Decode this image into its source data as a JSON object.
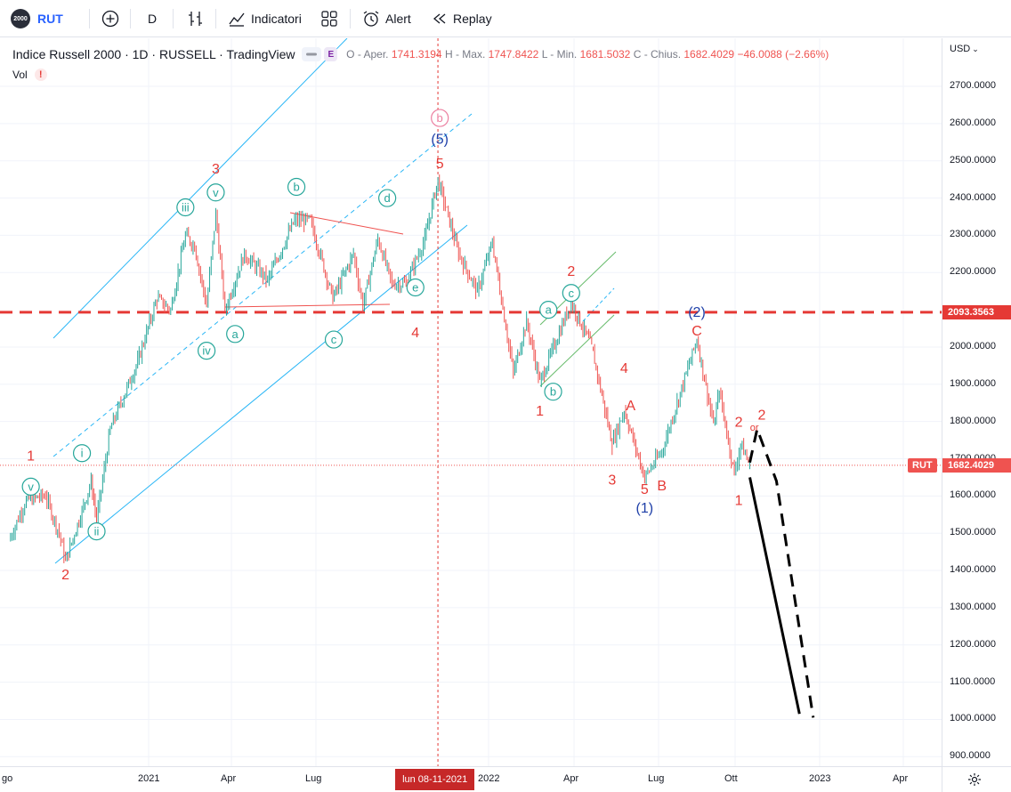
{
  "toolbar": {
    "logo_text": "2000",
    "symbol": "RUT",
    "interval": "D",
    "indicators_label": "Indicatori",
    "alert_label": "Alert",
    "replay_label": "Replay"
  },
  "legend": {
    "title": "Indice Russell 2000 · 1D · RUSSELL · TradingView",
    "badge_e": "E",
    "o_label": "O - Aper.",
    "o_value": "1741.3194",
    "h_label": "H - Max.",
    "h_value": "1747.8422",
    "l_label": "L - Min.",
    "l_value": "1681.5032",
    "c_label": "C - Chius.",
    "c_value": "1682.4029",
    "change": "−46.0088 (−2.66%)",
    "vol_label": "Vol",
    "vol_warning": "!"
  },
  "price_axis": {
    "currency": "USD",
    "ticks": [
      "2700.0000",
      "2600.0000",
      "2500.0000",
      "2400.0000",
      "2300.0000",
      "2200.0000",
      "2000.0000",
      "1900.0000",
      "1800.0000",
      "1700.0000",
      "1600.0000",
      "1500.0000",
      "1400.0000",
      "1300.0000",
      "1200.0000",
      "1100.0000",
      "1000.0000",
      "900.0000"
    ],
    "level_tag": "2093.3563",
    "rut_tag_label": "RUT",
    "rut_tag_value": "1682.4029"
  },
  "time_axis": {
    "labels": [
      "go",
      "2021",
      "Apr",
      "Lug",
      "2022",
      "Apr",
      "Lug",
      "Ott",
      "2023",
      "Apr"
    ],
    "cursor_label": "lun 08-11-2021"
  },
  "colors": {
    "up": "#26a69a",
    "down": "#ef5350",
    "level": "#e53935",
    "channel": "#29b6f6",
    "wave_green": "#26a69a",
    "wave_red": "#e53935",
    "wave_blue": "#1e3fa8",
    "accent": "#2962ff"
  },
  "chart_data": {
    "type": "candlestick",
    "symbol": "RUT",
    "interval": "1D",
    "ylim": [
      880,
      2780
    ],
    "horizontal_levels": [
      2093.3563,
      1682.4029
    ],
    "price_path": [
      [
        "2020-08-01",
        1480
      ],
      [
        "2020-08-20",
        1590
      ],
      [
        "2020-09-10",
        1600
      ],
      [
        "2020-09-25",
        1500
      ],
      [
        "2020-10-02",
        1425
      ],
      [
        "2020-10-20",
        1560
      ],
      [
        "2020-10-30",
        1640
      ],
      [
        "2020-11-05",
        1535
      ],
      [
        "2020-11-20",
        1780
      ],
      [
        "2020-12-20",
        1960
      ],
      [
        "2021-01-10",
        2130
      ],
      [
        "2021-01-25",
        2100
      ],
      [
        "2021-02-10",
        2300
      ],
      [
        "2021-02-20",
        2270
      ],
      [
        "2021-03-05",
        2110
      ],
      [
        "2021-03-15",
        2360
      ],
      [
        "2021-03-25",
        2100
      ],
      [
        "2021-04-15",
        2250
      ],
      [
        "2021-05-10",
        2180
      ],
      [
        "2021-06-08",
        2340
      ],
      [
        "2021-06-25",
        2340
      ],
      [
        "2021-07-19",
        2130
      ],
      [
        "2021-08-10",
        2250
      ],
      [
        "2021-08-20",
        2110
      ],
      [
        "2021-09-05",
        2290
      ],
      [
        "2021-09-20",
        2170
      ],
      [
        "2021-10-05",
        2170
      ],
      [
        "2021-10-25",
        2290
      ],
      [
        "2021-11-08",
        2450
      ],
      [
        "2021-11-30",
        2250
      ],
      [
        "2021-12-20",
        2150
      ],
      [
        "2022-01-05",
        2280
      ],
      [
        "2022-01-27",
        1930
      ],
      [
        "2022-02-10",
        2070
      ],
      [
        "2022-02-24",
        1905
      ],
      [
        "2022-03-29",
        2120
      ],
      [
        "2022-04-20",
        2000
      ],
      [
        "2022-05-12",
        1740
      ],
      [
        "2022-05-25",
        1830
      ],
      [
        "2022-06-16",
        1650
      ],
      [
        "2022-07-05",
        1720
      ],
      [
        "2022-08-16",
        2020
      ],
      [
        "2022-09-05",
        1790
      ],
      [
        "2022-09-12",
        1880
      ],
      [
        "2022-09-30",
        1660
      ],
      [
        "2022-10-07",
        1740
      ],
      [
        "2022-10-17",
        1682
      ]
    ],
    "projection_paths": [
      {
        "style": "solid",
        "points": [
          [
            "2022-10-17",
            1650
          ],
          [
            "2022-12-10",
            1015
          ]
        ]
      },
      {
        "style": "dashed",
        "points": [
          [
            "2022-10-17",
            1690
          ],
          [
            "2022-10-25",
            1780
          ],
          [
            "2022-11-15",
            1640
          ],
          [
            "2022-12-25",
            1005
          ]
        ]
      }
    ],
    "wave_labels": [
      {
        "text": "1",
        "date": "2020-08-25",
        "price": 1710,
        "color": "red",
        "circle": false
      },
      {
        "text": "v",
        "date": "2020-08-25",
        "price": 1625,
        "color": "green",
        "circle": true
      },
      {
        "text": "2",
        "date": "2020-10-02",
        "price": 1390,
        "color": "red",
        "circle": false
      },
      {
        "text": "ii",
        "date": "2020-11-05",
        "price": 1505,
        "color": "green",
        "circle": true
      },
      {
        "text": "i",
        "date": "2020-10-20",
        "price": 1715,
        "color": "green",
        "circle": true
      },
      {
        "text": "iii",
        "date": "2021-02-10",
        "price": 2375,
        "color": "green",
        "circle": true
      },
      {
        "text": "3",
        "date": "2021-03-15",
        "price": 2480,
        "color": "red",
        "circle": false
      },
      {
        "text": "v",
        "date": "2021-03-15",
        "price": 2415,
        "color": "green",
        "circle": true
      },
      {
        "text": "iv",
        "date": "2021-03-05",
        "price": 1990,
        "color": "green",
        "circle": true
      },
      {
        "text": "a",
        "date": "2021-04-05",
        "price": 2035,
        "color": "green",
        "circle": true
      },
      {
        "text": "b",
        "date": "2021-06-10",
        "price": 2430,
        "color": "green",
        "circle": true
      },
      {
        "text": "c",
        "date": "2021-07-20",
        "price": 2020,
        "color": "green",
        "circle": true
      },
      {
        "text": "d",
        "date": "2021-09-15",
        "price": 2400,
        "color": "green",
        "circle": true
      },
      {
        "text": "e",
        "date": "2021-10-15",
        "price": 2160,
        "color": "green",
        "circle": true
      },
      {
        "text": "4",
        "date": "2021-10-15",
        "price": 2040,
        "color": "red",
        "circle": false
      },
      {
        "text": "b",
        "date": "2021-11-10",
        "price": 2615,
        "color": "pink",
        "circle": true
      },
      {
        "text": "(5)",
        "date": "2021-11-10",
        "price": 2560,
        "color": "blue",
        "circle": false
      },
      {
        "text": "5",
        "date": "2021-11-10",
        "price": 2495,
        "color": "red",
        "circle": false
      },
      {
        "text": "1",
        "date": "2022-02-24",
        "price": 1830,
        "color": "red",
        "circle": false
      },
      {
        "text": "a",
        "date": "2022-03-05",
        "price": 2100,
        "color": "green",
        "circle": true
      },
      {
        "text": "b",
        "date": "2022-03-10",
        "price": 1880,
        "color": "green",
        "circle": true
      },
      {
        "text": "2",
        "date": "2022-03-29",
        "price": 2205,
        "color": "red",
        "circle": false
      },
      {
        "text": "c",
        "date": "2022-03-29",
        "price": 2145,
        "color": "green",
        "circle": true
      },
      {
        "text": "3",
        "date": "2022-05-12",
        "price": 1645,
        "color": "red",
        "circle": false
      },
      {
        "text": "4",
        "date": "2022-05-25",
        "price": 1945,
        "color": "red",
        "circle": false
      },
      {
        "text": "A",
        "date": "2022-06-01",
        "price": 1845,
        "color": "red",
        "circle": false
      },
      {
        "text": "5",
        "date": "2022-06-16",
        "price": 1620,
        "color": "red",
        "circle": false
      },
      {
        "text": "(1)",
        "date": "2022-06-16",
        "price": 1570,
        "color": "blue",
        "circle": false
      },
      {
        "text": "B",
        "date": "2022-07-05",
        "price": 1630,
        "color": "red",
        "circle": false
      },
      {
        "text": "(2)",
        "date": "2022-08-16",
        "price": 2095,
        "color": "blue",
        "circle": false
      },
      {
        "text": "C",
        "date": "2022-08-16",
        "price": 2045,
        "color": "red",
        "circle": false
      },
      {
        "text": "2",
        "date": "2022-10-05",
        "price": 1800,
        "color": "red",
        "circle": false
      },
      {
        "text": "1",
        "date": "2022-10-05",
        "price": 1590,
        "color": "red",
        "circle": false
      },
      {
        "text": "or",
        "date": "2022-10-22",
        "price": 1790,
        "color": "red",
        "circle": false
      },
      {
        "text": "2",
        "date": "2022-10-30",
        "price": 1820,
        "color": "red",
        "circle": false
      }
    ]
  }
}
